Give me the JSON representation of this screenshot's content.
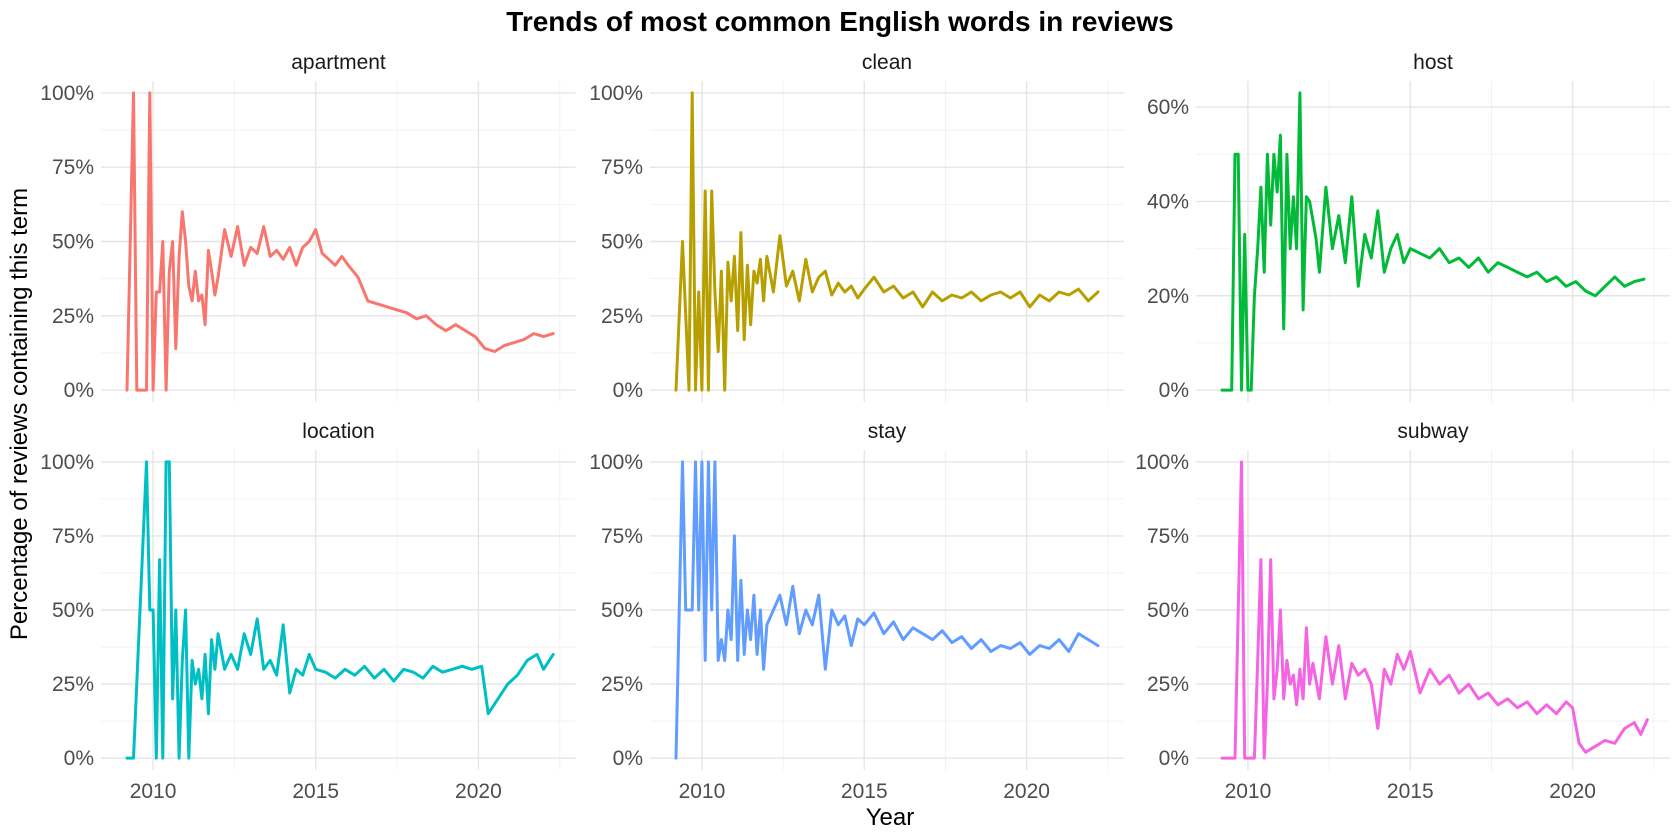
{
  "chart_data": {
    "type": "line",
    "title": "Trends of most common English words in reviews",
    "xlabel": "Year",
    "ylabel": "Percentage of reviews containing this term",
    "xlim": [
      2008.4,
      2023.0
    ],
    "x_ticks": [
      2010,
      2015,
      2020
    ],
    "grid": true,
    "legend": "none",
    "panels": [
      {
        "name": "apartment",
        "color": "#F8766D",
        "ylim": [
          -0.04,
          1.04
        ],
        "y_ticks": [
          0,
          0.25,
          0.5,
          0.75,
          1.0
        ],
        "y_tick_labels": [
          "0%",
          "25%",
          "50%",
          "75%",
          "100%"
        ],
        "x": [
          2009.2,
          2009.4,
          2009.5,
          2009.6,
          2009.8,
          2009.9,
          2010.0,
          2010.1,
          2010.2,
          2010.3,
          2010.4,
          2010.5,
          2010.6,
          2010.7,
          2010.8,
          2010.9,
          2011.0,
          2011.1,
          2011.2,
          2011.3,
          2011.4,
          2011.5,
          2011.6,
          2011.7,
          2011.8,
          2011.9,
          2012.0,
          2012.2,
          2012.4,
          2012.6,
          2012.8,
          2013.0,
          2013.2,
          2013.4,
          2013.6,
          2013.8,
          2014.0,
          2014.2,
          2014.4,
          2014.6,
          2014.8,
          2015.0,
          2015.2,
          2015.4,
          2015.6,
          2015.8,
          2016.0,
          2016.3,
          2016.6,
          2016.9,
          2017.2,
          2017.5,
          2017.8,
          2018.1,
          2018.4,
          2018.7,
          2019.0,
          2019.3,
          2019.6,
          2019.9,
          2020.2,
          2020.5,
          2020.8,
          2021.1,
          2021.4,
          2021.7,
          2022.0,
          2022.3
        ],
        "y": [
          0.0,
          1.0,
          0.0,
          0.0,
          0.0,
          1.0,
          0.0,
          0.33,
          0.33,
          0.5,
          0.0,
          0.4,
          0.5,
          0.14,
          0.45,
          0.6,
          0.5,
          0.35,
          0.3,
          0.4,
          0.3,
          0.32,
          0.22,
          0.47,
          0.4,
          0.32,
          0.38,
          0.54,
          0.45,
          0.55,
          0.42,
          0.48,
          0.46,
          0.55,
          0.45,
          0.47,
          0.44,
          0.48,
          0.42,
          0.48,
          0.5,
          0.54,
          0.46,
          0.44,
          0.42,
          0.45,
          0.42,
          0.38,
          0.3,
          0.29,
          0.28,
          0.27,
          0.26,
          0.24,
          0.25,
          0.22,
          0.2,
          0.22,
          0.2,
          0.18,
          0.14,
          0.13,
          0.15,
          0.16,
          0.17,
          0.19,
          0.18,
          0.19
        ]
      },
      {
        "name": "clean",
        "color": "#B79F00",
        "ylim": [
          -0.04,
          1.04
        ],
        "y_ticks": [
          0,
          0.25,
          0.5,
          0.75,
          1.0
        ],
        "y_tick_labels": [
          "0%",
          "25%",
          "50%",
          "75%",
          "100%"
        ],
        "x": [
          2009.2,
          2009.4,
          2009.6,
          2009.7,
          2009.8,
          2009.9,
          2010.0,
          2010.1,
          2010.2,
          2010.3,
          2010.4,
          2010.5,
          2010.6,
          2010.7,
          2010.8,
          2010.9,
          2011.0,
          2011.1,
          2011.2,
          2011.3,
          2011.4,
          2011.5,
          2011.6,
          2011.7,
          2011.8,
          2011.9,
          2012.0,
          2012.2,
          2012.4,
          2012.6,
          2012.8,
          2013.0,
          2013.2,
          2013.4,
          2013.6,
          2013.8,
          2014.0,
          2014.2,
          2014.4,
          2014.6,
          2014.8,
          2015.0,
          2015.3,
          2015.6,
          2015.9,
          2016.2,
          2016.5,
          2016.8,
          2017.1,
          2017.4,
          2017.7,
          2018.0,
          2018.3,
          2018.6,
          2018.9,
          2019.2,
          2019.5,
          2019.8,
          2020.1,
          2020.4,
          2020.7,
          2021.0,
          2021.3,
          2021.6,
          2021.9,
          2022.2
        ],
        "y": [
          0.0,
          0.5,
          0.0,
          1.0,
          0.0,
          0.33,
          0.0,
          0.67,
          0.0,
          0.67,
          0.33,
          0.13,
          0.4,
          0.0,
          0.43,
          0.3,
          0.45,
          0.2,
          0.53,
          0.17,
          0.42,
          0.22,
          0.4,
          0.36,
          0.44,
          0.3,
          0.45,
          0.33,
          0.52,
          0.35,
          0.4,
          0.3,
          0.44,
          0.33,
          0.38,
          0.4,
          0.32,
          0.36,
          0.33,
          0.35,
          0.31,
          0.34,
          0.38,
          0.33,
          0.35,
          0.31,
          0.33,
          0.28,
          0.33,
          0.3,
          0.32,
          0.31,
          0.33,
          0.3,
          0.32,
          0.33,
          0.31,
          0.33,
          0.28,
          0.32,
          0.3,
          0.33,
          0.32,
          0.34,
          0.3,
          0.33
        ]
      },
      {
        "name": "host",
        "color": "#00BA38",
        "ylim": [
          -0.0252,
          0.6552
        ],
        "y_ticks": [
          0,
          0.2,
          0.4,
          0.6
        ],
        "y_tick_labels": [
          "0%",
          "20%",
          "40%",
          "60%"
        ],
        "x": [
          2009.2,
          2009.5,
          2009.6,
          2009.7,
          2009.8,
          2009.9,
          2010.0,
          2010.1,
          2010.2,
          2010.3,
          2010.4,
          2010.5,
          2010.6,
          2010.7,
          2010.8,
          2010.9,
          2011.0,
          2011.1,
          2011.2,
          2011.3,
          2011.4,
          2011.5,
          2011.6,
          2011.7,
          2011.8,
          2011.9,
          2012.0,
          2012.1,
          2012.2,
          2012.4,
          2012.6,
          2012.8,
          2013.0,
          2013.2,
          2013.4,
          2013.6,
          2013.8,
          2014.0,
          2014.2,
          2014.4,
          2014.6,
          2014.8,
          2015.0,
          2015.3,
          2015.6,
          2015.9,
          2016.2,
          2016.5,
          2016.8,
          2017.1,
          2017.4,
          2017.7,
          2018.0,
          2018.3,
          2018.6,
          2018.9,
          2019.2,
          2019.5,
          2019.8,
          2020.1,
          2020.4,
          2020.7,
          2021.0,
          2021.3,
          2021.6,
          2021.9,
          2022.2
        ],
        "y": [
          0.0,
          0.0,
          0.5,
          0.5,
          0.0,
          0.33,
          0.0,
          0.0,
          0.2,
          0.3,
          0.43,
          0.25,
          0.5,
          0.35,
          0.5,
          0.42,
          0.54,
          0.13,
          0.5,
          0.3,
          0.41,
          0.3,
          0.63,
          0.17,
          0.41,
          0.4,
          0.36,
          0.32,
          0.25,
          0.43,
          0.3,
          0.37,
          0.27,
          0.41,
          0.22,
          0.33,
          0.28,
          0.38,
          0.25,
          0.3,
          0.33,
          0.27,
          0.3,
          0.29,
          0.28,
          0.3,
          0.27,
          0.28,
          0.26,
          0.28,
          0.25,
          0.27,
          0.26,
          0.25,
          0.24,
          0.25,
          0.23,
          0.24,
          0.22,
          0.23,
          0.21,
          0.2,
          0.22,
          0.24,
          0.22,
          0.23,
          0.235
        ]
      },
      {
        "name": "location",
        "color": "#00BFC4",
        "ylim": [
          -0.04,
          1.04
        ],
        "y_ticks": [
          0,
          0.25,
          0.5,
          0.75,
          1.0
        ],
        "y_tick_labels": [
          "0%",
          "25%",
          "50%",
          "75%",
          "100%"
        ],
        "x": [
          2009.2,
          2009.4,
          2009.8,
          2009.9,
          2010.0,
          2010.1,
          2010.2,
          2010.3,
          2010.4,
          2010.5,
          2010.6,
          2010.7,
          2010.8,
          2010.9,
          2011.0,
          2011.1,
          2011.2,
          2011.3,
          2011.4,
          2011.5,
          2011.6,
          2011.7,
          2011.8,
          2011.9,
          2012.0,
          2012.2,
          2012.4,
          2012.6,
          2012.8,
          2013.0,
          2013.2,
          2013.4,
          2013.6,
          2013.8,
          2014.0,
          2014.2,
          2014.4,
          2014.6,
          2014.8,
          2015.0,
          2015.3,
          2015.6,
          2015.9,
          2016.2,
          2016.5,
          2016.8,
          2017.1,
          2017.4,
          2017.7,
          2018.0,
          2018.3,
          2018.6,
          2018.9,
          2019.2,
          2019.5,
          2019.8,
          2020.1,
          2020.3,
          2020.6,
          2020.9,
          2021.2,
          2021.5,
          2021.8,
          2022.0,
          2022.3
        ],
        "y": [
          0.0,
          0.0,
          1.0,
          0.5,
          0.5,
          0.0,
          0.67,
          0.0,
          1.0,
          1.0,
          0.2,
          0.5,
          0.0,
          0.33,
          0.5,
          0.0,
          0.33,
          0.25,
          0.3,
          0.2,
          0.35,
          0.15,
          0.4,
          0.3,
          0.42,
          0.3,
          0.35,
          0.3,
          0.42,
          0.35,
          0.47,
          0.3,
          0.33,
          0.28,
          0.45,
          0.22,
          0.3,
          0.28,
          0.35,
          0.3,
          0.29,
          0.27,
          0.3,
          0.28,
          0.31,
          0.27,
          0.3,
          0.26,
          0.3,
          0.29,
          0.27,
          0.31,
          0.29,
          0.3,
          0.31,
          0.3,
          0.31,
          0.15,
          0.2,
          0.25,
          0.28,
          0.33,
          0.35,
          0.3,
          0.35
        ]
      },
      {
        "name": "stay",
        "color": "#619CFF",
        "ylim": [
          -0.04,
          1.04
        ],
        "y_ticks": [
          0,
          0.25,
          0.5,
          0.75,
          1.0
        ],
        "y_tick_labels": [
          "0%",
          "25%",
          "50%",
          "75%",
          "100%"
        ],
        "x": [
          2009.2,
          2009.4,
          2009.5,
          2009.6,
          2009.7,
          2009.8,
          2009.9,
          2010.0,
          2010.1,
          2010.2,
          2010.3,
          2010.4,
          2010.5,
          2010.6,
          2010.7,
          2010.8,
          2010.9,
          2011.0,
          2011.1,
          2011.2,
          2011.3,
          2011.4,
          2011.5,
          2011.6,
          2011.7,
          2011.8,
          2011.9,
          2012.0,
          2012.2,
          2012.4,
          2012.6,
          2012.8,
          2013.0,
          2013.2,
          2013.4,
          2013.6,
          2013.8,
          2014.0,
          2014.2,
          2014.4,
          2014.6,
          2014.8,
          2015.0,
          2015.3,
          2015.6,
          2015.9,
          2016.2,
          2016.5,
          2016.8,
          2017.1,
          2017.4,
          2017.7,
          2018.0,
          2018.3,
          2018.6,
          2018.9,
          2019.2,
          2019.5,
          2019.8,
          2020.1,
          2020.4,
          2020.7,
          2021.0,
          2021.3,
          2021.6,
          2021.9,
          2022.2
        ],
        "y": [
          0.0,
          1.0,
          0.5,
          0.5,
          0.5,
          1.0,
          0.5,
          1.0,
          0.33,
          1.0,
          0.5,
          1.0,
          0.33,
          0.4,
          0.33,
          0.5,
          0.4,
          0.75,
          0.33,
          0.6,
          0.35,
          0.5,
          0.4,
          0.55,
          0.35,
          0.5,
          0.3,
          0.45,
          0.5,
          0.55,
          0.45,
          0.58,
          0.42,
          0.5,
          0.45,
          0.55,
          0.3,
          0.5,
          0.45,
          0.48,
          0.38,
          0.47,
          0.45,
          0.49,
          0.42,
          0.46,
          0.4,
          0.44,
          0.42,
          0.4,
          0.43,
          0.39,
          0.41,
          0.37,
          0.4,
          0.36,
          0.38,
          0.37,
          0.39,
          0.35,
          0.38,
          0.37,
          0.4,
          0.36,
          0.42,
          0.4,
          0.38
        ]
      },
      {
        "name": "subway",
        "color": "#F564E3",
        "ylim": [
          -0.04,
          1.04
        ],
        "y_ticks": [
          0,
          0.25,
          0.5,
          0.75,
          1.0
        ],
        "y_tick_labels": [
          "0%",
          "25%",
          "50%",
          "75%",
          "100%"
        ],
        "x": [
          2009.2,
          2009.6,
          2009.8,
          2009.9,
          2010.0,
          2010.1,
          2010.2,
          2010.3,
          2010.4,
          2010.5,
          2010.6,
          2010.7,
          2010.8,
          2010.9,
          2011.0,
          2011.1,
          2011.2,
          2011.3,
          2011.4,
          2011.5,
          2011.6,
          2011.7,
          2011.8,
          2011.9,
          2012.0,
          2012.2,
          2012.4,
          2012.6,
          2012.8,
          2013.0,
          2013.2,
          2013.4,
          2013.6,
          2013.8,
          2014.0,
          2014.2,
          2014.4,
          2014.6,
          2014.8,
          2015.0,
          2015.3,
          2015.6,
          2015.9,
          2016.2,
          2016.5,
          2016.8,
          2017.1,
          2017.4,
          2017.7,
          2018.0,
          2018.3,
          2018.6,
          2018.9,
          2019.2,
          2019.5,
          2019.8,
          2020.0,
          2020.2,
          2020.4,
          2020.7,
          2021.0,
          2021.3,
          2021.6,
          2021.9,
          2022.1,
          2022.3
        ],
        "y": [
          0.0,
          0.0,
          1.0,
          0.0,
          0.0,
          0.0,
          0.0,
          0.33,
          0.67,
          0.0,
          0.25,
          0.67,
          0.2,
          0.3,
          0.5,
          0.2,
          0.33,
          0.25,
          0.28,
          0.18,
          0.3,
          0.2,
          0.44,
          0.25,
          0.32,
          0.2,
          0.41,
          0.25,
          0.38,
          0.2,
          0.32,
          0.28,
          0.3,
          0.25,
          0.1,
          0.3,
          0.25,
          0.35,
          0.3,
          0.36,
          0.22,
          0.3,
          0.25,
          0.28,
          0.22,
          0.25,
          0.2,
          0.22,
          0.18,
          0.2,
          0.17,
          0.19,
          0.15,
          0.18,
          0.15,
          0.19,
          0.17,
          0.05,
          0.02,
          0.04,
          0.06,
          0.05,
          0.1,
          0.12,
          0.08,
          0.13
        ]
      }
    ]
  }
}
